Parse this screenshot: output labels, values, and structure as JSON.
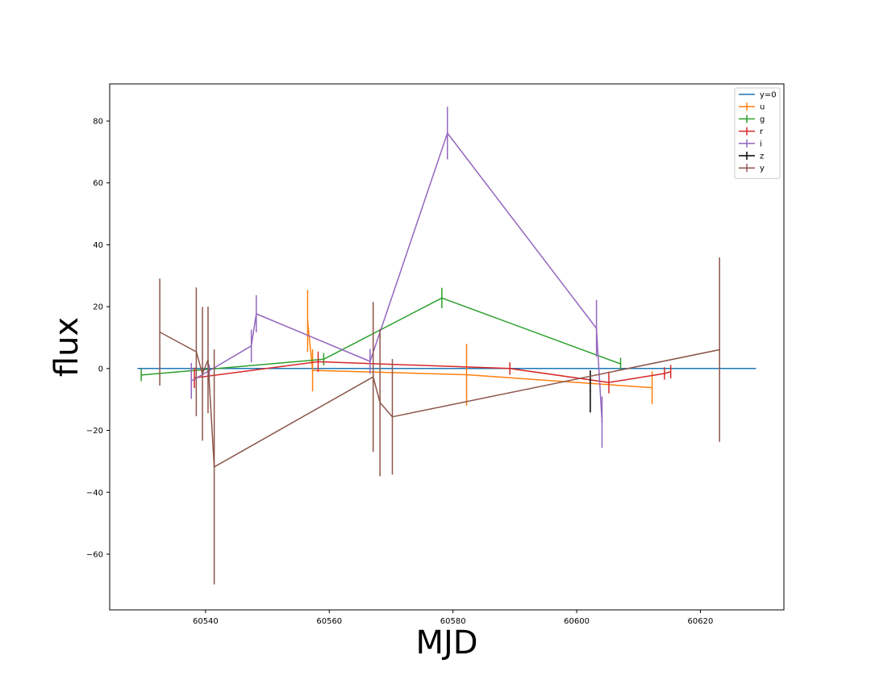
{
  "chart_data": {
    "type": "line",
    "xlabel": "MJD",
    "ylabel": "flux",
    "xlim": [
      60524.5,
      60633.5
    ],
    "ylim": [
      -78,
      92
    ],
    "xticks": [
      60540,
      60560,
      60580,
      60600,
      60620
    ],
    "yticks": [
      -60,
      -40,
      -20,
      0,
      20,
      40,
      60,
      80
    ],
    "legend_position": "top-right",
    "grid": false,
    "series": [
      {
        "name": "y=0",
        "color": "#1f77b4",
        "errorbars": false,
        "x": [
          60529,
          60629
        ],
        "y": [
          0,
          0
        ],
        "yerr": [
          0,
          0
        ]
      },
      {
        "name": "u",
        "color": "#ff7f0e",
        "errorbars": true,
        "x": [
          60556.5,
          60557.3,
          60582.2,
          60612.2
        ],
        "y": [
          15.4,
          -0.6,
          -2.0,
          -6.2
        ],
        "yerr": [
          10.0,
          6.8,
          10.0,
          5.3
        ]
      },
      {
        "name": "g",
        "color": "#2ca02c",
        "errorbars": true,
        "x": [
          60529.6,
          60559.1,
          60578.2,
          60607.1
        ],
        "y": [
          -2.1,
          3.0,
          22.8,
          1.5
        ],
        "yerr": [
          2.0,
          2.0,
          3.3,
          2.0
        ]
      },
      {
        "name": "r",
        "color": "#d62728",
        "errorbars": true,
        "x": [
          60538.2,
          60558.2,
          60589.2,
          60605.2,
          60614.2,
          60615.2
        ],
        "y": [
          -3.0,
          2.2,
          0.0,
          -4.5,
          -1.6,
          -1.0
        ],
        "yerr": [
          3.3,
          3.3,
          2.0,
          3.5,
          2.0,
          2.2
        ]
      },
      {
        "name": "i",
        "color": "#9467bd",
        "errorbars": true,
        "x": [
          60537.7,
          60540.6,
          60547.4,
          60548.2,
          60566.6,
          60579.1,
          60603.2,
          60604.1
        ],
        "y": [
          -4.0,
          -0.7,
          7.3,
          17.7,
          2.3,
          76.1,
          13.0,
          -17.3
        ],
        "yerr": [
          5.8,
          2.0,
          5.3,
          6.0,
          4.0,
          8.5,
          9.2,
          8.3
        ]
      },
      {
        "name": "z",
        "color": "#000000",
        "errorbars": true,
        "x": [
          60602.2
        ],
        "y": [
          -7.4
        ],
        "yerr": [
          6.8
        ]
      },
      {
        "name": "y",
        "color": "#8c564b",
        "errorbars": true,
        "x": [
          60532.6,
          60538.5,
          60539.5,
          60540.4,
          60541.4,
          60567.1,
          60568.2,
          60570.2,
          60623.1
        ],
        "y": [
          11.8,
          5.4,
          -1.7,
          2.8,
          -31.8,
          -2.7,
          -11.0,
          -15.6,
          6.1
        ],
        "yerr": [
          17.3,
          20.8,
          21.6,
          17.2,
          38.0,
          24.2,
          23.8,
          18.7,
          29.8
        ]
      }
    ]
  }
}
